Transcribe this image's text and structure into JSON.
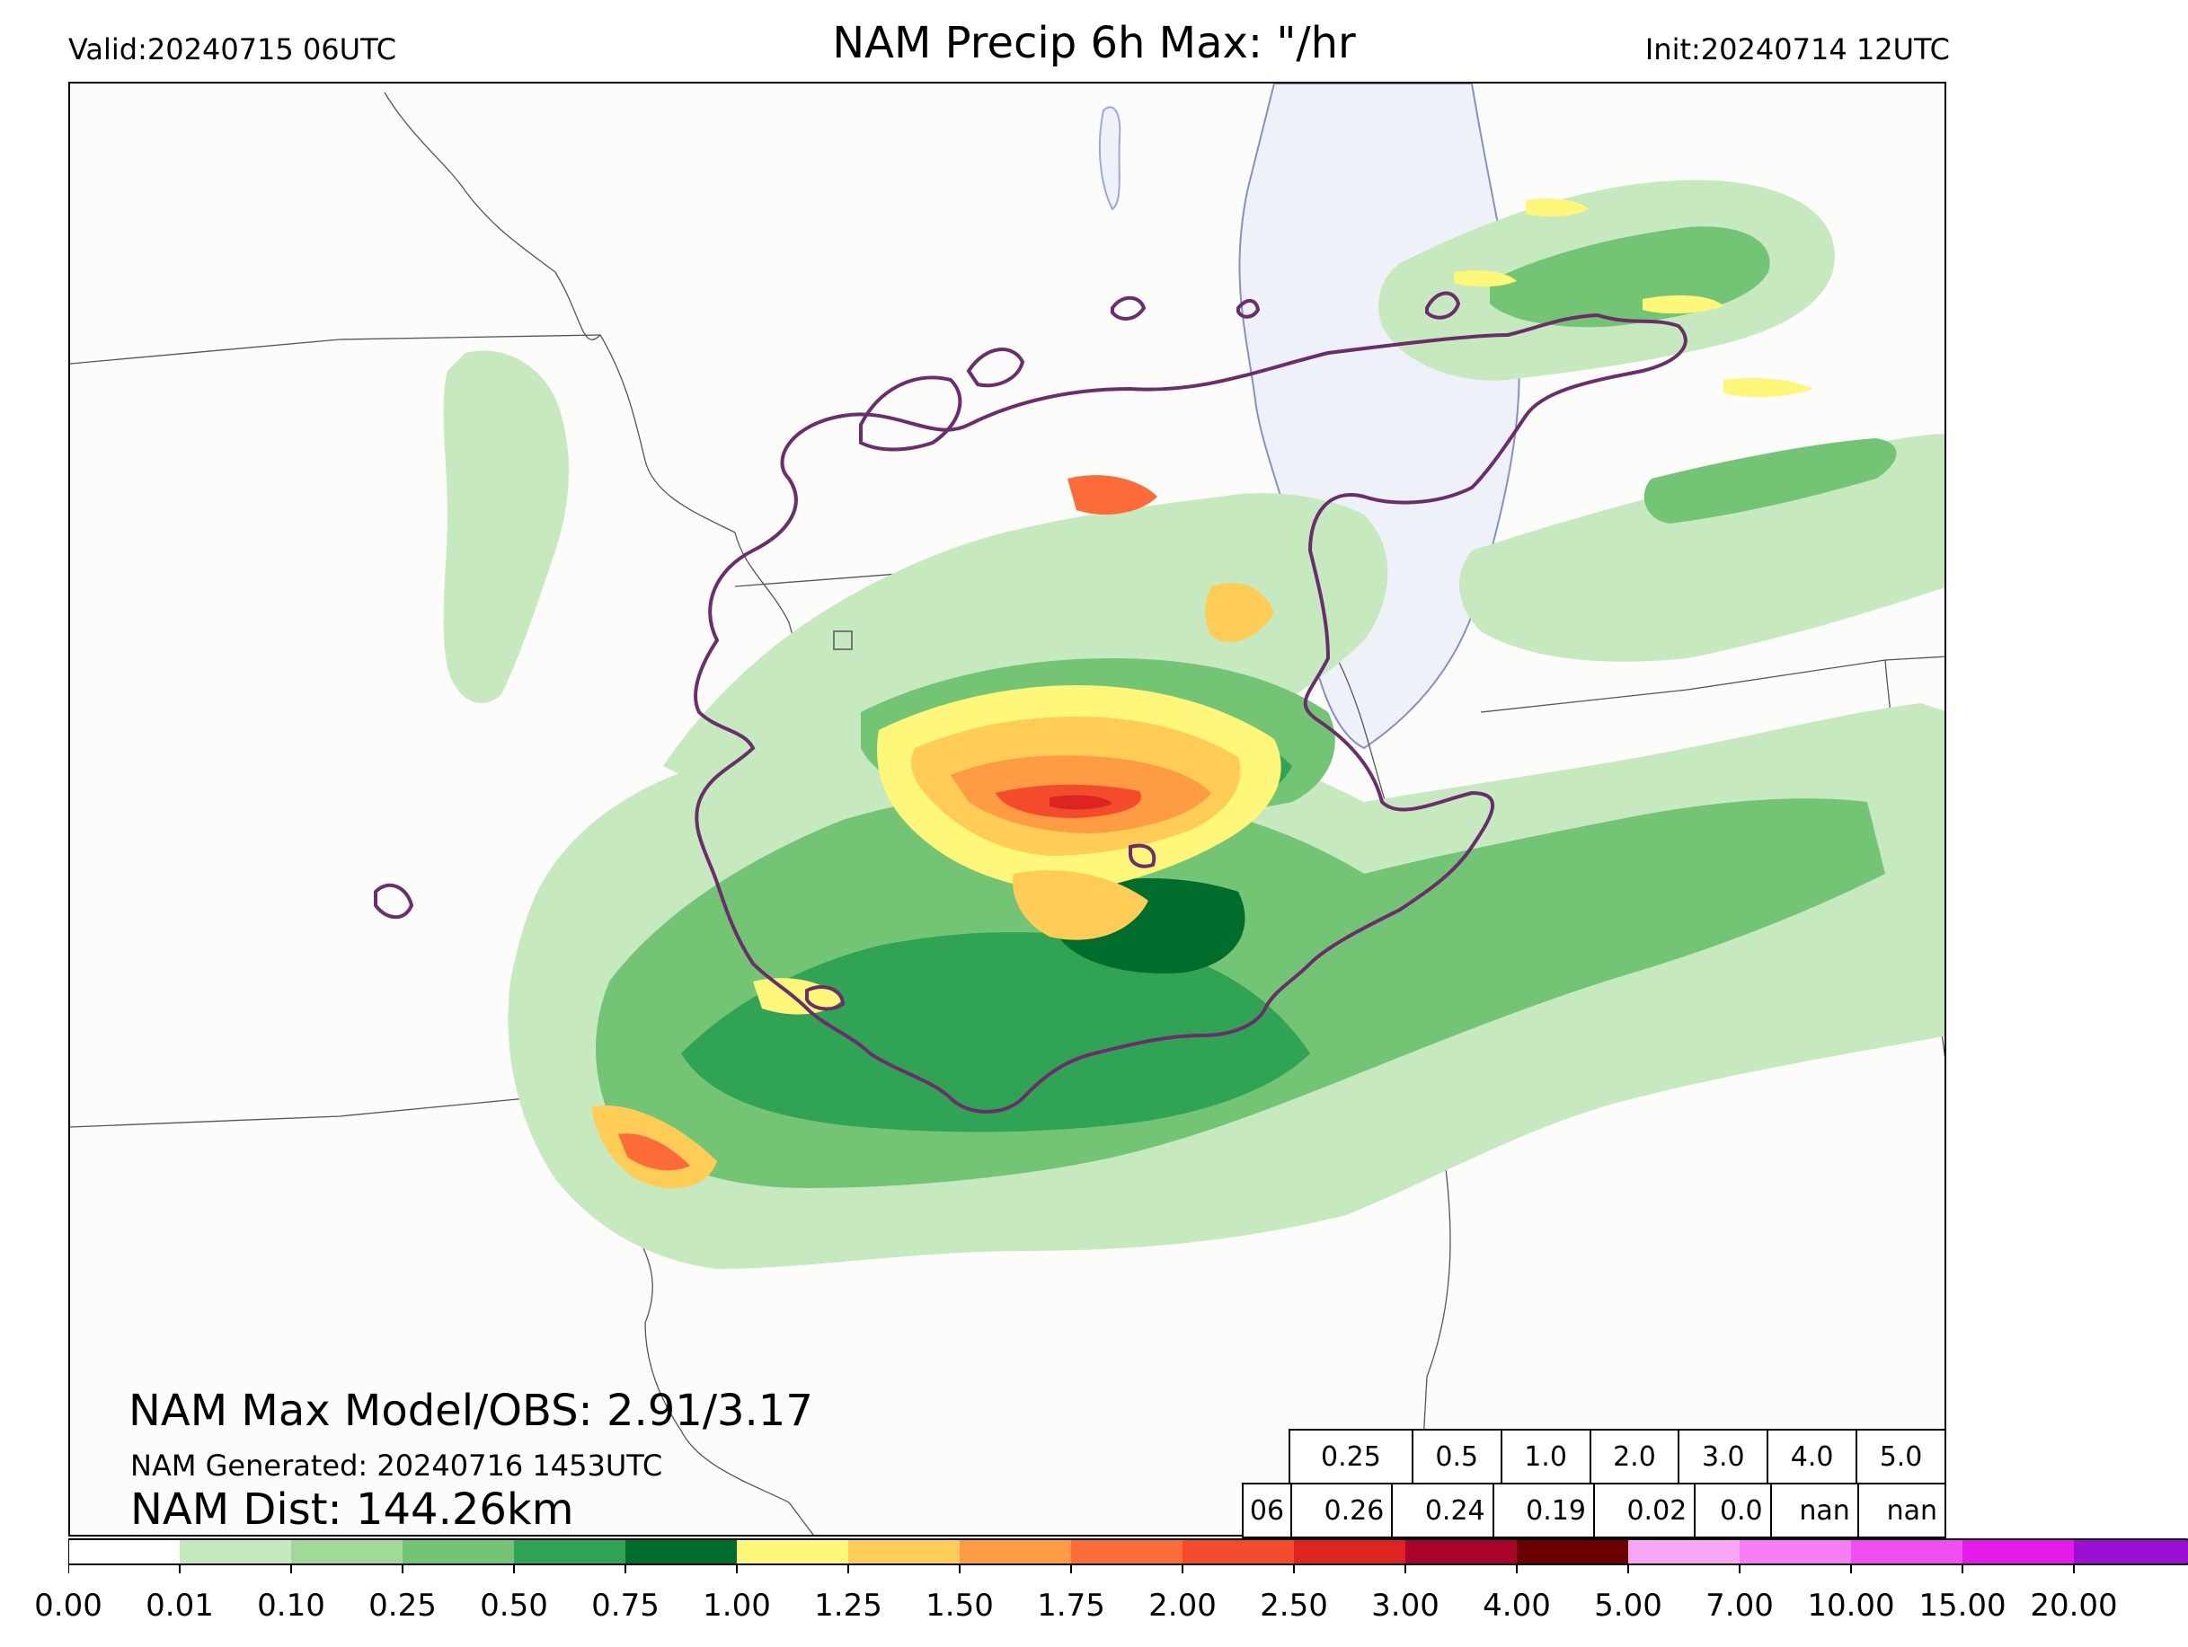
{
  "header": {
    "valid": "Valid:20240715 06UTC",
    "title": "NAM Precip 6h Max: \"/hr",
    "init": "Init:20240714 12UTC"
  },
  "map": {
    "lake_color": "#eef2f8",
    "contour_color": "#6b2d6b",
    "boundary_color": "#555555"
  },
  "overlay": {
    "max_line": "NAM Max Model/OBS: 2.91/3.17",
    "generated_line": "NAM Generated: 20240716 1453UTC",
    "dist_line": "NAM Dist: 144.26km"
  },
  "stats_table": {
    "thresholds": [
      "0.25",
      "0.5",
      "1.0",
      "2.0",
      "3.0",
      "4.0",
      "5.0"
    ],
    "row_label": "06",
    "values": [
      "0.26",
      "0.24",
      "0.19",
      "0.02",
      "0.0",
      "nan",
      "nan"
    ]
  },
  "colorbar": {
    "ticks": [
      "0.00",
      "0.01",
      "0.10",
      "0.25",
      "0.50",
      "0.75",
      "1.00",
      "1.25",
      "1.50",
      "1.75",
      "2.00",
      "2.50",
      "3.00",
      "4.00",
      "5.00",
      "7.00",
      "10.00",
      "15.00",
      "20.00"
    ],
    "colors": [
      "#ffffff",
      "#c7e9c0",
      "#a1d99b",
      "#74c476",
      "#31a354",
      "#006d2c",
      "#fff77a",
      "#ffcc55",
      "#fe9b44",
      "#fd6b38",
      "#f44b2c",
      "#dc2520",
      "#a8052b",
      "#6a0000",
      "#f9a6f6",
      "#f57ff2",
      "#ef4eee",
      "#e31ce9",
      "#9a0fd1"
    ]
  }
}
